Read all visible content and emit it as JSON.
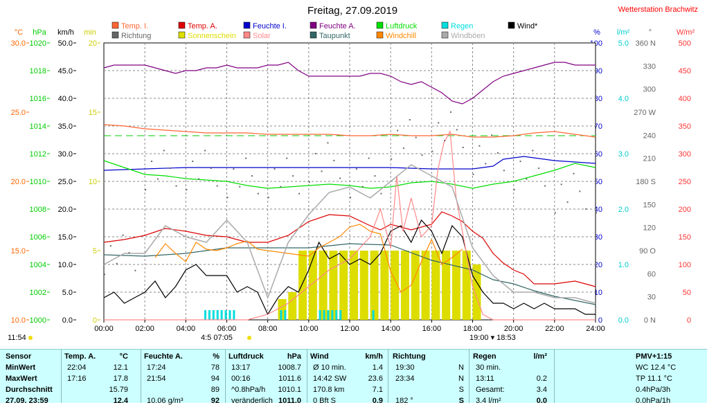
{
  "title": "Freitag, 27.09.2019",
  "brand": "Wetterstation Brachwitz",
  "axes": {
    "left": [
      {
        "unit": "°C",
        "color": "#ff6600",
        "ticks": [
          "30.0",
          "25.0",
          "20.0",
          "15.0",
          "10.0"
        ],
        "step": 2
      },
      {
        "unit": "hPa",
        "color": "#00cc00",
        "ticks": [
          "1020",
          "1018",
          "1016",
          "1014",
          "1012",
          "1010",
          "1008",
          "1006",
          "1004",
          "1002",
          "1000"
        ],
        "step": 1
      },
      {
        "unit": "km/h",
        "color": "#000000",
        "ticks": [
          "50.0",
          "45.0",
          "40.0",
          "35.0",
          "30.0",
          "25.0",
          "20.0",
          "15.0",
          "10.0",
          "5.0",
          "0.0"
        ],
        "step": 1
      },
      {
        "unit": "min",
        "color": "#cccc00",
        "ticks": [
          "20",
          "15",
          "10",
          "5",
          "0"
        ],
        "step": 2.5
      }
    ],
    "right": [
      {
        "unit": "%",
        "color": "#0000cc",
        "ticks": [
          "100",
          "90",
          "80",
          "70",
          "60",
          "50",
          "40",
          "30",
          "20",
          "10",
          "0"
        ],
        "step": 1
      },
      {
        "unit": "l/m²",
        "color": "#00cccc",
        "ticks": [
          "5.0",
          "4.0",
          "3.0",
          "2.0",
          "1.0",
          "0.0"
        ],
        "step": 2
      },
      {
        "unit": "°",
        "color": "#666666",
        "ticks": [
          "360 N",
          "330",
          "300",
          "270 W",
          "240",
          "210",
          "180 S",
          "150",
          "120",
          "90 O",
          "60",
          "30",
          "0 N"
        ],
        "step": 0.8333
      },
      {
        "unit": "W/m²",
        "color": "#ff3333",
        "ticks": [
          "500",
          "450",
          "400",
          "350",
          "300",
          "250",
          "200",
          "150",
          "100",
          "50",
          "0"
        ],
        "step": 1
      }
    ],
    "x_ticks": [
      "00:00",
      "02:00",
      "04:00",
      "06:00",
      "08:00",
      "10:00",
      "12:00",
      "14:00",
      "16:00",
      "18:00",
      "20:00",
      "22:00",
      "24:00"
    ]
  },
  "legend": [
    {
      "label": "Temp. I.",
      "color": "#ff6633"
    },
    {
      "label": "Temp. A.",
      "color": "#dd0000"
    },
    {
      "label": "Feuchte I.",
      "color": "#0000cc"
    },
    {
      "label": "Feuchte A.",
      "color": "#800080"
    },
    {
      "label": "Luftdruck",
      "color": "#00dd00"
    },
    {
      "label": "Regen",
      "color": "#00dddd"
    },
    {
      "label": "Wind*",
      "color": "#000000"
    },
    {
      "label": "Richtung",
      "color": "#666666"
    },
    {
      "label": "Sonnenschein",
      "color": "#dddd00"
    },
    {
      "label": "Solar",
      "color": "#ff8888"
    },
    {
      "label": "Taupunkt",
      "color": "#336666"
    },
    {
      "label": "Windchill",
      "color": "#ff8800"
    },
    {
      "label": "Windböen",
      "color": "#aaaaaa"
    }
  ],
  "sun_marks": {
    "left_time": "11:54",
    "sunrise": "4:5 07:05",
    "sunset": "19:00 ▾ 18:53"
  },
  "chart_data": {
    "type": "line",
    "x_unit": "hour",
    "series": [
      {
        "name": "Feuchte A.",
        "unit": "%",
        "color": "#800080",
        "x": [
          0,
          0.5,
          1,
          1.5,
          2,
          2.5,
          3,
          3.5,
          4,
          4.5,
          5,
          5.5,
          6,
          6.5,
          7,
          7.5,
          8,
          8.5,
          9,
          9.5,
          10,
          10.5,
          11,
          11.5,
          12,
          12.5,
          13,
          13.5,
          14,
          14.5,
          15,
          15.5,
          16,
          16.5,
          17,
          17.5,
          18,
          18.5,
          19,
          19.5,
          20,
          20.5,
          21,
          21.5,
          22,
          22.5,
          23,
          23.5,
          24
        ],
        "y": [
          91,
          92,
          92,
          92,
          92,
          91,
          90,
          89,
          90,
          90,
          91,
          91,
          92,
          91,
          91,
          91,
          92,
          92,
          93,
          90,
          88,
          88,
          88,
          88,
          88,
          88,
          89,
          89,
          88,
          86,
          85,
          86,
          84,
          82,
          79,
          78,
          80,
          83,
          86,
          88,
          89,
          90,
          91,
          92,
          93,
          93,
          92,
          92,
          92
        ]
      },
      {
        "name": "Temp. I.",
        "unit": "°C",
        "color": "#ff6633",
        "x": [
          0,
          1,
          2,
          3,
          4,
          5,
          6,
          7,
          8,
          9,
          10,
          11,
          12,
          13,
          14,
          15,
          16,
          17,
          18,
          19,
          20,
          21,
          22,
          23,
          24
        ],
        "y": [
          24.1,
          24.0,
          23.8,
          23.7,
          23.6,
          23.5,
          23.5,
          23.5,
          23.4,
          23.4,
          23.4,
          23.4,
          23.3,
          23.3,
          23.4,
          23.3,
          23.3,
          23.4,
          23.2,
          23.2,
          23.3,
          23.5,
          23.6,
          23.4,
          23.2
        ]
      },
      {
        "name": "Feuchte I.",
        "unit": "%",
        "color": "#0000cc",
        "x": [
          0,
          2,
          4,
          6,
          8,
          10,
          12,
          14,
          16,
          18,
          18.5,
          19,
          19.5,
          20,
          20.5,
          21,
          22,
          23,
          24
        ],
        "y": [
          54,
          54.5,
          55,
          55,
          55,
          55,
          55,
          55,
          54.5,
          54.5,
          55,
          55.5,
          58,
          58.5,
          59,
          58.5,
          57.5,
          57,
          56.5
        ]
      },
      {
        "name": "Luftdruck",
        "unit": "hPa",
        "color": "#00dd00",
        "x": [
          0,
          1,
          2,
          3,
          4,
          5,
          6,
          7,
          8,
          9,
          10,
          11,
          12,
          13,
          14,
          15,
          16,
          17,
          18,
          19,
          20,
          21,
          22,
          23,
          24
        ],
        "y": [
          1011.5,
          1011.0,
          1010.5,
          1010.4,
          1010.2,
          1010.1,
          1010.0,
          1009.7,
          1009.5,
          1009.6,
          1009.7,
          1009.8,
          1009.7,
          1009.5,
          1009.6,
          1009.9,
          1010.0,
          1009.8,
          1009.5,
          1009.8,
          1010.0,
          1010.4,
          1010.8,
          1011.3,
          1011.0
        ]
      },
      {
        "name": "Temp. A.",
        "unit": "°C",
        "color": "#dd0000",
        "x": [
          0,
          1,
          2,
          3,
          4,
          5,
          6,
          7,
          8,
          9,
          10,
          11,
          12,
          13,
          13.5,
          14,
          15,
          16,
          16.5,
          17,
          17.5,
          18,
          18.5,
          19,
          19.5,
          20,
          20.5,
          21,
          22,
          23,
          24
        ],
        "y": [
          15.6,
          15.8,
          16.1,
          16.6,
          16.4,
          16.1,
          16.0,
          15.6,
          15.6,
          16.1,
          17.1,
          17.6,
          17.5,
          16.8,
          16.5,
          16.9,
          16.5,
          16.9,
          17.8,
          17.5,
          17.1,
          16.4,
          15.9,
          14.8,
          14.1,
          13.6,
          13.3,
          12.6,
          12.6,
          12.8,
          12.4
        ]
      },
      {
        "name": "Taupunkt",
        "unit": "°C",
        "color": "#336666",
        "x": [
          0,
          2,
          4,
          6,
          8,
          10,
          12,
          14,
          16,
          18,
          19,
          20,
          21,
          22,
          23,
          24
        ],
        "y": [
          14.7,
          14.6,
          14.8,
          15.2,
          15.2,
          15.2,
          15.5,
          15.4,
          14.3,
          13.6,
          12.9,
          12.6,
          12.1,
          11.7,
          11.4,
          11.1
        ]
      },
      {
        "name": "Wind*",
        "unit": "km/h",
        "color": "#000000",
        "x": [
          0,
          0.5,
          1,
          1.5,
          2,
          2.5,
          3,
          3.5,
          4,
          4.5,
          5,
          5.5,
          6,
          6.5,
          7,
          7.5,
          8,
          8.5,
          9,
          9.5,
          10,
          10.5,
          11,
          11.5,
          12,
          12.5,
          13,
          13.5,
          14,
          14.5,
          15,
          15.5,
          16,
          16.5,
          17,
          17.5,
          18,
          18.5,
          19,
          19.5,
          20,
          20.5,
          21,
          21.5,
          22,
          22.5,
          23,
          23.5,
          24
        ],
        "y": [
          4,
          5,
          3,
          4,
          5,
          7,
          4,
          6,
          9,
          10,
          8,
          8,
          8,
          5,
          6,
          5,
          1,
          4,
          6,
          5,
          9,
          14,
          11,
          12,
          10,
          11,
          10,
          12,
          16,
          17,
          14,
          18,
          16,
          12,
          17,
          15,
          8,
          5,
          3,
          3,
          2,
          3,
          2,
          3,
          2,
          2,
          2,
          1,
          1
        ]
      },
      {
        "name": "Solar",
        "unit": "W/m²",
        "color": "#ff8888",
        "x": [
          0,
          6,
          7,
          8,
          9,
          10,
          11,
          12,
          13,
          13.5,
          14,
          14.3,
          14.6,
          15,
          15.5,
          16,
          16.3,
          16.6,
          16.9,
          17.2,
          17.5,
          18,
          18.5,
          19,
          24
        ],
        "y": [
          0,
          0,
          0,
          10,
          30,
          60,
          90,
          110,
          150,
          200,
          130,
          260,
          160,
          220,
          150,
          170,
          270,
          320,
          340,
          220,
          160,
          60,
          10,
          0,
          0
        ]
      },
      {
        "name": "Windchill",
        "unit": "°C",
        "color": "#ff8800",
        "x": [
          2.5,
          3,
          3.5,
          4,
          4.5,
          5,
          5.5,
          6,
          6.5,
          7,
          7.5,
          10,
          10.5,
          11,
          11.5,
          12,
          12.5,
          13,
          13.5,
          14,
          14.5,
          15,
          15.5,
          16,
          16.5,
          17,
          17.5
        ],
        "y": [
          14.5,
          15.5,
          14.8,
          14.2,
          15.6,
          15.1,
          15.0,
          15.2,
          15.5,
          15.7,
          15.1,
          14.6,
          15.2,
          15.6,
          16.0,
          16.7,
          16.9,
          16.4,
          16.2,
          13.5,
          12.0,
          12.5,
          14.2,
          15.8,
          14.0,
          14.5,
          15.1
        ]
      },
      {
        "name": "Windböen",
        "unit": "km/h",
        "color": "#aaaaaa",
        "x": [
          0,
          1,
          2,
          3,
          4,
          5,
          6,
          7,
          8,
          9,
          10,
          11,
          12,
          13,
          14,
          15,
          16,
          17,
          18,
          19,
          20,
          21,
          22,
          23,
          24
        ],
        "y": [
          10,
          12,
          12,
          17,
          15,
          14,
          18,
          14,
          4,
          14,
          19,
          23,
          24,
          22,
          25,
          28,
          26,
          24,
          13,
          8,
          5,
          5,
          4,
          4,
          3
        ]
      },
      {
        "name": "Richtung",
        "unit": "°",
        "color": "#666666",
        "x": [
          0,
          2,
          4,
          6,
          8,
          10,
          12,
          14,
          16,
          18,
          20,
          22,
          24
        ],
        "y": [
          90,
          200,
          200,
          190,
          190,
          210,
          190,
          240,
          250,
          220,
          200,
          170,
          170
        ]
      }
    ],
    "sunshine_bars": {
      "name": "Sonnenschein",
      "unit": "min",
      "color": "#dddd00",
      "x": [
        8.5,
        9.0,
        9.5,
        10,
        10.5,
        11,
        11.5,
        12,
        12.5,
        13,
        13.5,
        14,
        14.5,
        15,
        15.5,
        16,
        16.5,
        17,
        17.5,
        18
      ],
      "y": [
        1.5,
        2,
        5,
        5,
        5,
        5,
        5,
        5,
        5,
        5,
        5,
        5,
        5,
        5,
        5,
        5,
        5,
        5,
        5,
        4
      ]
    },
    "rain_bars": {
      "name": "Regen",
      "unit": "l/m²",
      "color": "#00dddd",
      "x": [
        4.9,
        5.1,
        5.3,
        5.5,
        5.7,
        5.9,
        6.1,
        6.3,
        8.6,
        8.8,
        10.5,
        10.7,
        10.9,
        11.1,
        11.3,
        11.5,
        13.1
      ],
      "y": [
        0.2,
        0.2,
        0.2,
        0.2,
        0.2,
        0.2,
        0.2,
        0.2,
        0.2,
        0.2,
        0.2,
        0.2,
        0.2,
        0.2,
        0.2,
        0.2,
        0.2
      ]
    },
    "windchill_ref_line": {
      "name": "",
      "value": 23.3,
      "unit": "°C",
      "color": "#00cc00"
    },
    "xlim": [
      0,
      24
    ]
  },
  "table": {
    "row_labels": [
      "Sensor",
      "MinWert",
      "MaxWert",
      "Durchschnitt",
      "27.09. 23:59"
    ],
    "cols": [
      {
        "head": "Temp. A.",
        "unit": "°C",
        "rows": [
          [
            "22:04",
            "12.1"
          ],
          [
            "17:16",
            "17.8"
          ],
          [
            "",
            "15.79"
          ],
          [
            "",
            "12.4"
          ]
        ]
      },
      {
        "head": "Feuchte A.",
        "unit": "%",
        "rows": [
          [
            "17:24",
            "78"
          ],
          [
            "21:54",
            "94"
          ],
          [
            "",
            "89"
          ],
          [
            "10.06 g/m³",
            "92"
          ]
        ]
      },
      {
        "head": "Luftdruck",
        "unit": "hPa",
        "rows": [
          [
            "13:17",
            "1008.7"
          ],
          [
            "00:16",
            "1011.6"
          ],
          [
            "^0.8hPa/h",
            "1010.1"
          ],
          [
            "veränderlich",
            "1011.0"
          ]
        ]
      },
      {
        "head": "Wind",
        "unit": "km/h",
        "rows": [
          [
            "Ø 10 min.",
            "1.4"
          ],
          [
            "14:42   SW",
            "23.6"
          ],
          [
            "170.8 km",
            "7.1"
          ],
          [
            "0 Bft S",
            "0.9"
          ]
        ]
      },
      {
        "head": "Richtung",
        "unit": "",
        "rows": [
          [
            "19:30",
            "N"
          ],
          [
            "23:34",
            "N"
          ],
          [
            "",
            "S"
          ],
          [
            "182 °",
            "S"
          ]
        ]
      },
      {
        "head": "Regen",
        "unit": "l/m²",
        "rows": [
          [
            "30 min.",
            ""
          ],
          [
            "13:11",
            "0.2"
          ],
          [
            "Gesamt:",
            "3.4"
          ],
          [
            "3.4 l/m²",
            "0.0"
          ]
        ]
      }
    ],
    "pmv": [
      "PMV+1:15",
      "WC 12.4 °C",
      "TP 11.1 °C",
      "0.4hPa/3h",
      "0.0hPa/1h"
    ]
  }
}
